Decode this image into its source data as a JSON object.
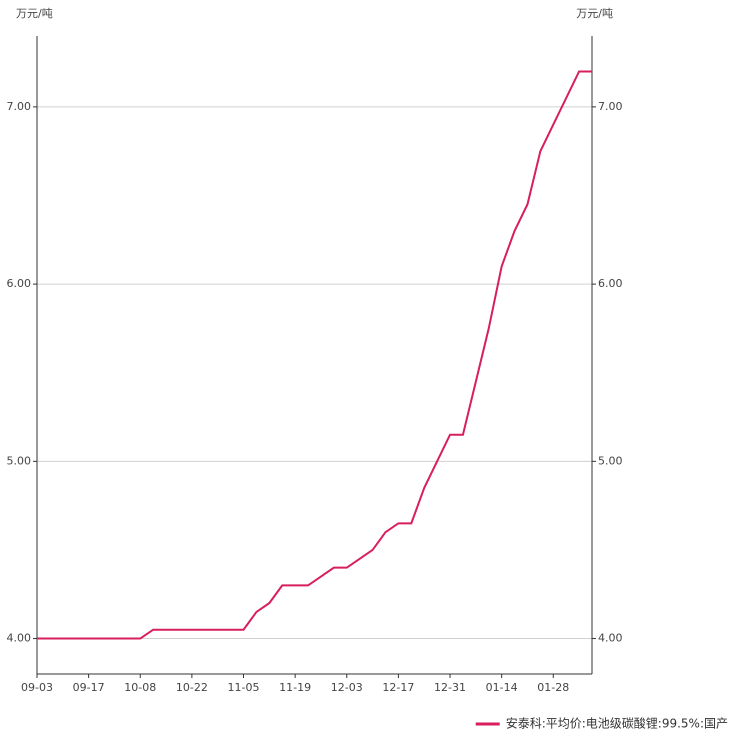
{
  "chart_data": {
    "type": "line",
    "y_unit": "万元/吨",
    "y2_unit": "万元/吨",
    "categories": [
      "09-03",
      null,
      null,
      null,
      "09-17",
      null,
      null,
      null,
      "10-08",
      null,
      null,
      null,
      "10-22",
      null,
      null,
      null,
      "11-05",
      null,
      null,
      null,
      "11-19",
      null,
      null,
      null,
      "12-03",
      null,
      null,
      null,
      "12-17",
      null,
      null,
      null,
      "12-31",
      null,
      null,
      null,
      "01-14",
      null,
      null,
      null,
      "01-28",
      null,
      null,
      null
    ],
    "series": [
      {
        "name": "安泰科:平均价:电池级碳酸锂:99.5%:国产",
        "color": "#d81e5b",
        "values": [
          4.0,
          4.0,
          4.0,
          4.0,
          4.0,
          4.0,
          4.0,
          4.0,
          4.0,
          4.05,
          4.05,
          4.05,
          4.05,
          4.05,
          4.05,
          4.05,
          4.05,
          4.15,
          4.2,
          4.3,
          4.3,
          4.3,
          4.35,
          4.4,
          4.4,
          4.45,
          4.5,
          4.6,
          4.65,
          4.65,
          4.85,
          5.0,
          5.15,
          5.15,
          5.45,
          5.75,
          6.1,
          6.3,
          6.45,
          6.75,
          6.9,
          7.05,
          7.2,
          7.2
        ]
      }
    ],
    "ylim": [
      3.8,
      7.4
    ],
    "yticks": [
      {
        "value": 4,
        "label": "4.00"
      },
      {
        "value": 5,
        "label": "5.00"
      },
      {
        "value": 6,
        "label": "6.00"
      },
      {
        "value": 7,
        "label": "7.00"
      }
    ],
    "y2lim": [
      3.8,
      7.4
    ],
    "y2ticks": [
      {
        "value": 4,
        "label": "4.00"
      },
      {
        "value": 5,
        "label": "5.00"
      },
      {
        "value": 6,
        "label": "6.00"
      },
      {
        "value": 7,
        "label": "7.00"
      }
    ],
    "grid": true,
    "legend": "bottom-right"
  }
}
